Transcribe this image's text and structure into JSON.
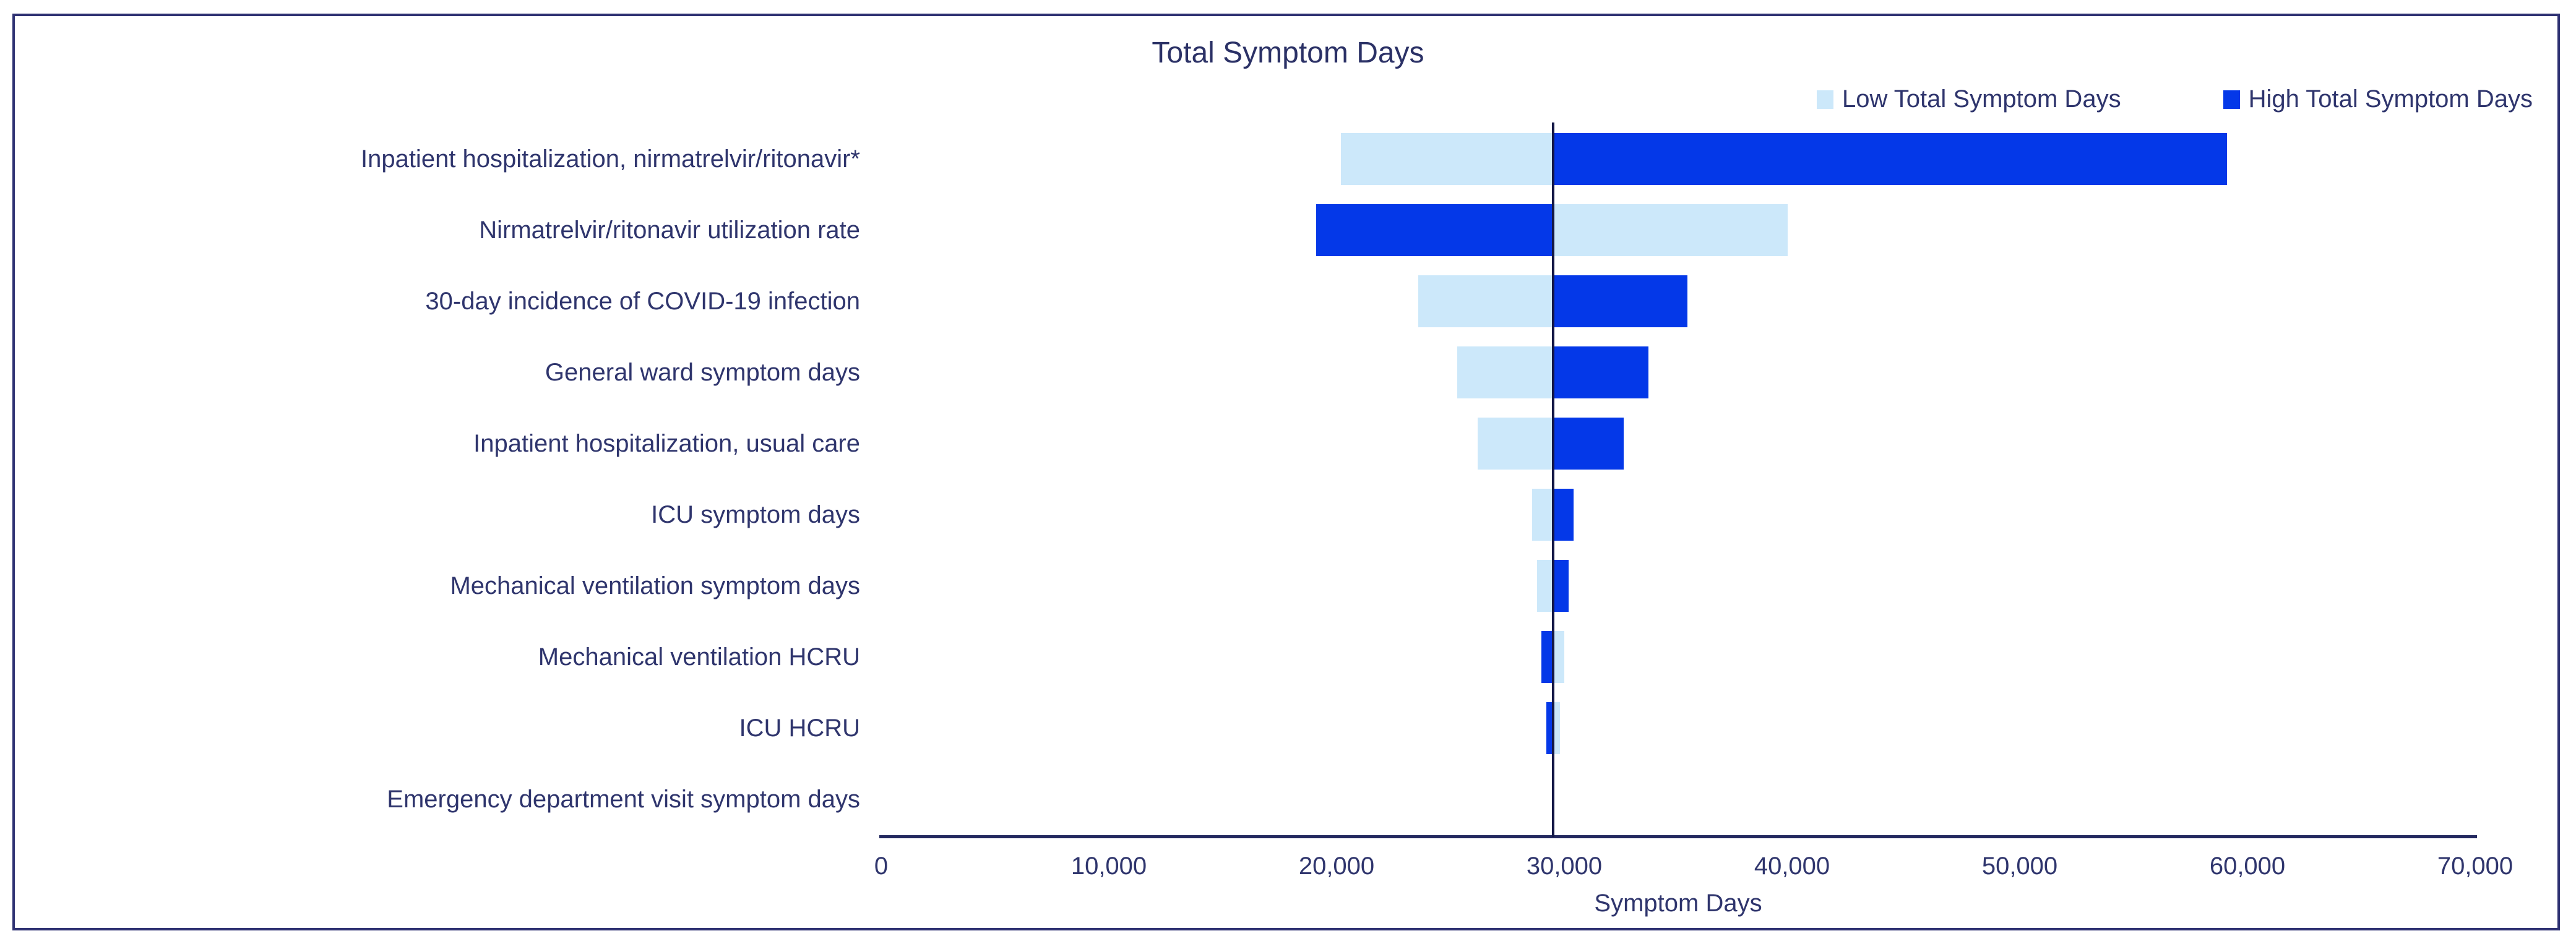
{
  "title": "Total Symptom Days",
  "legend": [
    {
      "label": "Low Total Symptom Days",
      "color": "#cce8fa"
    },
    {
      "label": "High Total Symptom Days",
      "color": "#0438e8"
    }
  ],
  "colors": {
    "low_bar": "#cce8fa",
    "high_bar": "#0438e8",
    "text": "#2f356d",
    "title_text": "#2b3166",
    "frame_border": "#2f3273",
    "baseline_line": "#141847",
    "axis_line": "#23285f",
    "background": "#ffffff"
  },
  "chart_data": {
    "type": "bar",
    "subtype": "tornado",
    "title": "Total Symptom Days",
    "xlabel": "Symptom Days",
    "ylabel": "",
    "xlim": [
      0,
      70000
    ],
    "baseline": 29500,
    "grid": false,
    "legend_position": "top-right",
    "xticks": [
      0,
      10000,
      20000,
      30000,
      40000,
      50000,
      60000,
      70000
    ],
    "xtick_labels": [
      "0",
      "10,000",
      "20,000",
      "30,000",
      "40,000",
      "50,000",
      "60,000",
      "70,000"
    ],
    "categories": [
      "Inpatient hospitalization, nirmatrelvir/ritonavir*",
      "Nirmatrelvir/ritonavir utilization rate",
      "30-day incidence of COVID-19 infection",
      "General ward symptom days",
      "Inpatient hospitalization, usual care",
      "ICU symptom days",
      "Mechanical ventilation symptom days",
      "Mechanical ventilation HCRU",
      "ICU HCRU",
      "Emergency department visit symptom days"
    ],
    "series": [
      {
        "name": "Low Total Symptom Days",
        "color": "#cce8fa",
        "values": [
          20200,
          39800,
          23600,
          25300,
          26200,
          28600,
          28800,
          30000,
          29800,
          29500
        ]
      },
      {
        "name": "High Total Symptom Days",
        "color": "#0438e8",
        "values": [
          59100,
          19100,
          35400,
          33700,
          32600,
          30400,
          30200,
          29000,
          29200,
          29500
        ]
      }
    ]
  }
}
